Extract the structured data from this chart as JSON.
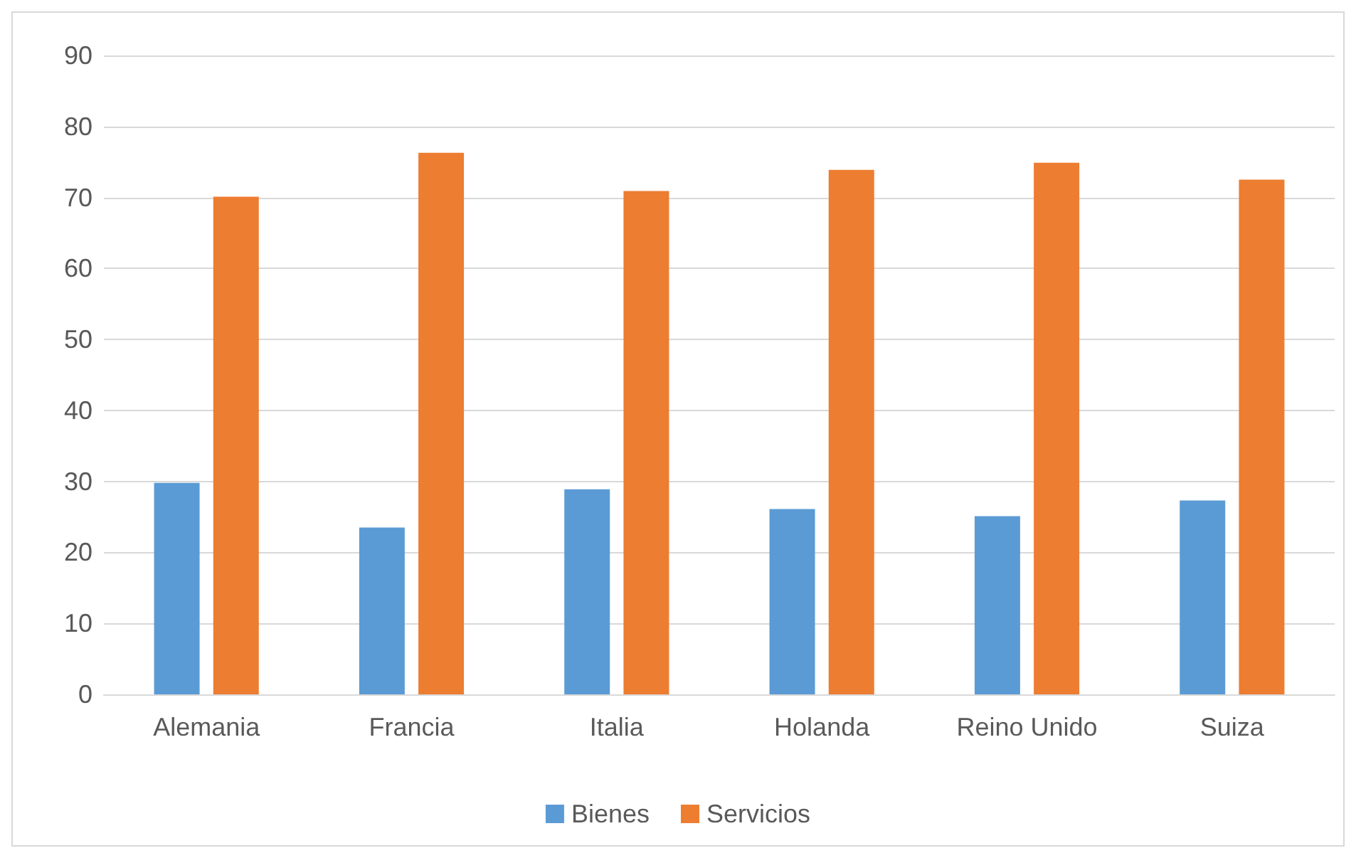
{
  "chart_data": {
    "type": "bar",
    "categories": [
      "Alemania",
      "Francia",
      "Italia",
      "Holanda",
      "Reino Unido",
      "Suiza"
    ],
    "series": [
      {
        "name": "Bienes",
        "color": "#5b9bd5",
        "values": [
          29.8,
          23.5,
          28.9,
          26.1,
          25.1,
          27.3
        ]
      },
      {
        "name": "Servicios",
        "color": "#ed7d31",
        "values": [
          70.1,
          76.3,
          70.9,
          73.9,
          74.9,
          72.5
        ]
      }
    ],
    "ylim": [
      0,
      90
    ],
    "yticks": [
      0,
      10,
      20,
      30,
      40,
      50,
      60,
      70,
      80,
      90
    ],
    "grid": "y",
    "legend": "bottom"
  }
}
